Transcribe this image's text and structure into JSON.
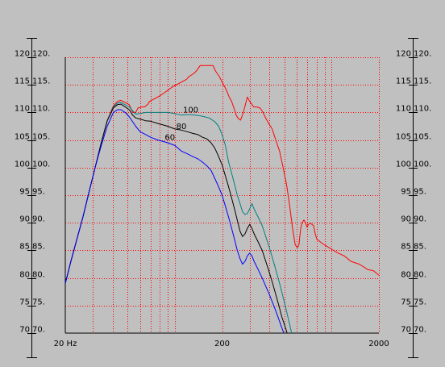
{
  "chart_data": {
    "type": "line",
    "title": "",
    "xlabel": "",
    "ylabel": "",
    "x_scale": "log",
    "xlim": [
      20,
      2000
    ],
    "ylim": [
      70,
      120
    ],
    "grid": true,
    "legend": "none",
    "x_ticks": [
      {
        "value": 20,
        "label": "20 Hz"
      },
      {
        "value": 200,
        "label": "200"
      },
      {
        "value": 2000,
        "label": "2000"
      }
    ],
    "y_ticks": [
      70,
      75,
      80,
      85,
      90,
      95,
      100,
      105,
      110,
      115,
      120
    ],
    "y_tick_labels_left": [
      "70",
      "75",
      "80",
      "85",
      "90",
      "95",
      "100",
      "105",
      "110",
      "115",
      "120"
    ],
    "y_tick_labels_inner": [
      "70.",
      "75.",
      "80.",
      "85.",
      "90.",
      "95.",
      "100.",
      "105.",
      "110.",
      "115.",
      "120."
    ],
    "colors": {
      "background": "#c0c0c0",
      "plot_background": "#c0c0c0",
      "grid": "#ff0000",
      "frame": "#000000"
    },
    "series": [
      {
        "label": "100",
        "color": "#ff0000",
        "label_at": {
          "x": 126,
          "y": 110
        },
        "points": [
          [
            20,
            79
          ],
          [
            21.7,
            83
          ],
          [
            23.7,
            87
          ],
          [
            25.9,
            91
          ],
          [
            28.3,
            95.5
          ],
          [
            31,
            100
          ],
          [
            33.9,
            104.5
          ],
          [
            37,
            108.5
          ],
          [
            40.5,
            111.2
          ],
          [
            43,
            112
          ],
          [
            45.2,
            112.2
          ],
          [
            48.2,
            111.8
          ],
          [
            51.2,
            111.4
          ],
          [
            53.8,
            110
          ],
          [
            56.2,
            110
          ],
          [
            58.2,
            110.8
          ],
          [
            61.4,
            111
          ],
          [
            64,
            111
          ],
          [
            67.3,
            111.5
          ],
          [
            69,
            112
          ],
          [
            74.4,
            112.5
          ],
          [
            80,
            113
          ],
          [
            85,
            113.5
          ],
          [
            95,
            114.5
          ],
          [
            102,
            115
          ],
          [
            110,
            115.5
          ],
          [
            118.5,
            116
          ],
          [
            123,
            116.5
          ],
          [
            131,
            117
          ],
          [
            137,
            117.5
          ],
          [
            145,
            118.5
          ],
          [
            158,
            118.5
          ],
          [
            175,
            118.5
          ],
          [
            181.7,
            117.5
          ],
          [
            192,
            116.5
          ],
          [
            200,
            115.5
          ],
          [
            212,
            114.2
          ],
          [
            222,
            112.8
          ],
          [
            230,
            112
          ],
          [
            240,
            110.5
          ],
          [
            246,
            109.5
          ],
          [
            252,
            109
          ],
          [
            262,
            108.6
          ],
          [
            270,
            109.5
          ],
          [
            279,
            111
          ],
          [
            290,
            112.8
          ],
          [
            300,
            112
          ],
          [
            309,
            111.5
          ],
          [
            318,
            111
          ],
          [
            333,
            111
          ],
          [
            349,
            110.8
          ],
          [
            362,
            110.2
          ],
          [
            379,
            109
          ],
          [
            397,
            108
          ],
          [
            417,
            107
          ],
          [
            440,
            105
          ],
          [
            465,
            103
          ],
          [
            490,
            100
          ],
          [
            515,
            97
          ],
          [
            540,
            93
          ],
          [
            563,
            89
          ],
          [
            585,
            86
          ],
          [
            605,
            85.5
          ],
          [
            618,
            86
          ],
          [
            634,
            89
          ],
          [
            648,
            90
          ],
          [
            665,
            90.5
          ],
          [
            680,
            90
          ],
          [
            697,
            89.2
          ],
          [
            714,
            89.8
          ],
          [
            730,
            90
          ],
          [
            748,
            89.7
          ],
          [
            766,
            89.5
          ],
          [
            785,
            88
          ],
          [
            805,
            87
          ],
          [
            826,
            86.8
          ],
          [
            848,
            86.5
          ],
          [
            900,
            86
          ],
          [
            1000,
            85.2
          ],
          [
            1100,
            84.5
          ],
          [
            1200,
            84
          ],
          [
            1330,
            83
          ],
          [
            1500,
            82.5
          ],
          [
            1700,
            81.5
          ],
          [
            1850,
            81.3
          ],
          [
            2000,
            80.5
          ]
        ]
      },
      {
        "label": "80",
        "color": "#008080",
        "label_at": {
          "x": 110,
          "y": 107
        },
        "points": [
          [
            20,
            79
          ],
          [
            21.7,
            83
          ],
          [
            23.7,
            87
          ],
          [
            25.9,
            91
          ],
          [
            28.3,
            95.5
          ],
          [
            31,
            100
          ],
          [
            33.9,
            104.5
          ],
          [
            37,
            108.5
          ],
          [
            40.5,
            111
          ],
          [
            43,
            111.7
          ],
          [
            45.2,
            111.8
          ],
          [
            48.2,
            111.4
          ],
          [
            51.2,
            111
          ],
          [
            53.8,
            110.3
          ],
          [
            56.2,
            109.7
          ],
          [
            60,
            109.8
          ],
          [
            65,
            110
          ],
          [
            70,
            110
          ],
          [
            78,
            110
          ],
          [
            90,
            110
          ],
          [
            100,
            109.8
          ],
          [
            110,
            109.5
          ],
          [
            118,
            109.6
          ],
          [
            125,
            109.6
          ],
          [
            135,
            109.5
          ],
          [
            145,
            109.4
          ],
          [
            155,
            109.2
          ],
          [
            165,
            109
          ],
          [
            180,
            108.3
          ],
          [
            190,
            107.5
          ],
          [
            200,
            106
          ],
          [
            210,
            104
          ],
          [
            220,
            101
          ],
          [
            230,
            99
          ],
          [
            240,
            97
          ],
          [
            250,
            95
          ],
          [
            260,
            93.5
          ],
          [
            270,
            92
          ],
          [
            280,
            91.5
          ],
          [
            290,
            91.7
          ],
          [
            300,
            92.5
          ],
          [
            310,
            93.5
          ],
          [
            320,
            92.5
          ],
          [
            340,
            91
          ],
          [
            360,
            89.5
          ],
          [
            380,
            87.5
          ],
          [
            400,
            85.5
          ],
          [
            420,
            83.5
          ],
          [
            440,
            81.5
          ],
          [
            460,
            79.5
          ],
          [
            480,
            77.5
          ],
          [
            500,
            75.5
          ],
          [
            520,
            73.5
          ],
          [
            540,
            71.5
          ],
          [
            555,
            70
          ]
        ]
      },
      {
        "label": "60",
        "color": "#000000",
        "label_at": {
          "x": 93,
          "y": 105
        },
        "points": [
          [
            20,
            79
          ],
          [
            21.7,
            83
          ],
          [
            23.7,
            87
          ],
          [
            25.9,
            91
          ],
          [
            28.3,
            95.5
          ],
          [
            31,
            100
          ],
          [
            33.9,
            104.5
          ],
          [
            37,
            108.5
          ],
          [
            40.5,
            110.8
          ],
          [
            43,
            111.4
          ],
          [
            45.2,
            111.5
          ],
          [
            48.2,
            111
          ],
          [
            51.2,
            110.5
          ],
          [
            53.8,
            109.5
          ],
          [
            56.2,
            109
          ],
          [
            60,
            108.8
          ],
          [
            65,
            108.5
          ],
          [
            70,
            108.4
          ],
          [
            78,
            108
          ],
          [
            90,
            107.5
          ],
          [
            100,
            107
          ],
          [
            110,
            106.8
          ],
          [
            120,
            106.5
          ],
          [
            130,
            106.2
          ],
          [
            140,
            106
          ],
          [
            150,
            105.5
          ],
          [
            160,
            105.2
          ],
          [
            170,
            104.5
          ],
          [
            180,
            103.5
          ],
          [
            190,
            102
          ],
          [
            200,
            100.5
          ],
          [
            210,
            98.5
          ],
          [
            220,
            96.5
          ],
          [
            230,
            94.5
          ],
          [
            240,
            92.5
          ],
          [
            250,
            90.5
          ],
          [
            260,
            88.5
          ],
          [
            270,
            87.5
          ],
          [
            280,
            88
          ],
          [
            290,
            89
          ],
          [
            300,
            89.7
          ],
          [
            310,
            89
          ],
          [
            320,
            88
          ],
          [
            340,
            86.5
          ],
          [
            360,
            85
          ],
          [
            380,
            83
          ],
          [
            400,
            81
          ],
          [
            420,
            79
          ],
          [
            440,
            77
          ],
          [
            460,
            75
          ],
          [
            480,
            73
          ],
          [
            500,
            71.5
          ],
          [
            520,
            70
          ]
        ]
      },
      {
        "label": "",
        "color": "#0000ff",
        "label_at": null,
        "points": [
          [
            20,
            79
          ],
          [
            21.7,
            83
          ],
          [
            23.7,
            87
          ],
          [
            25.9,
            91
          ],
          [
            28.3,
            95.5
          ],
          [
            31,
            100
          ],
          [
            33.9,
            104
          ],
          [
            37,
            107.5
          ],
          [
            40.5,
            110
          ],
          [
            43,
            110.5
          ],
          [
            45.2,
            110.5
          ],
          [
            48.2,
            110
          ],
          [
            51.2,
            109.2
          ],
          [
            53.8,
            108.3
          ],
          [
            56.2,
            107.5
          ],
          [
            60,
            106.5
          ],
          [
            65,
            106
          ],
          [
            70,
            105.5
          ],
          [
            78,
            105
          ],
          [
            90,
            104.5
          ],
          [
            100,
            104
          ],
          [
            110,
            103
          ],
          [
            120,
            102.5
          ],
          [
            130,
            102
          ],
          [
            140,
            101.6
          ],
          [
            150,
            101
          ],
          [
            160,
            100.3
          ],
          [
            170,
            99.5
          ],
          [
            180,
            98
          ],
          [
            190,
            96.5
          ],
          [
            200,
            95
          ],
          [
            210,
            93
          ],
          [
            220,
            91
          ],
          [
            230,
            89
          ],
          [
            240,
            87
          ],
          [
            250,
            85
          ],
          [
            260,
            83.5
          ],
          [
            270,
            82.5
          ],
          [
            280,
            83
          ],
          [
            290,
            84
          ],
          [
            300,
            84.5
          ],
          [
            310,
            84
          ],
          [
            320,
            83
          ],
          [
            340,
            81.5
          ],
          [
            360,
            80
          ],
          [
            380,
            78.5
          ],
          [
            400,
            77
          ],
          [
            420,
            75.5
          ],
          [
            440,
            74
          ],
          [
            460,
            72.5
          ],
          [
            480,
            71
          ],
          [
            495,
            70
          ]
        ]
      }
    ]
  }
}
